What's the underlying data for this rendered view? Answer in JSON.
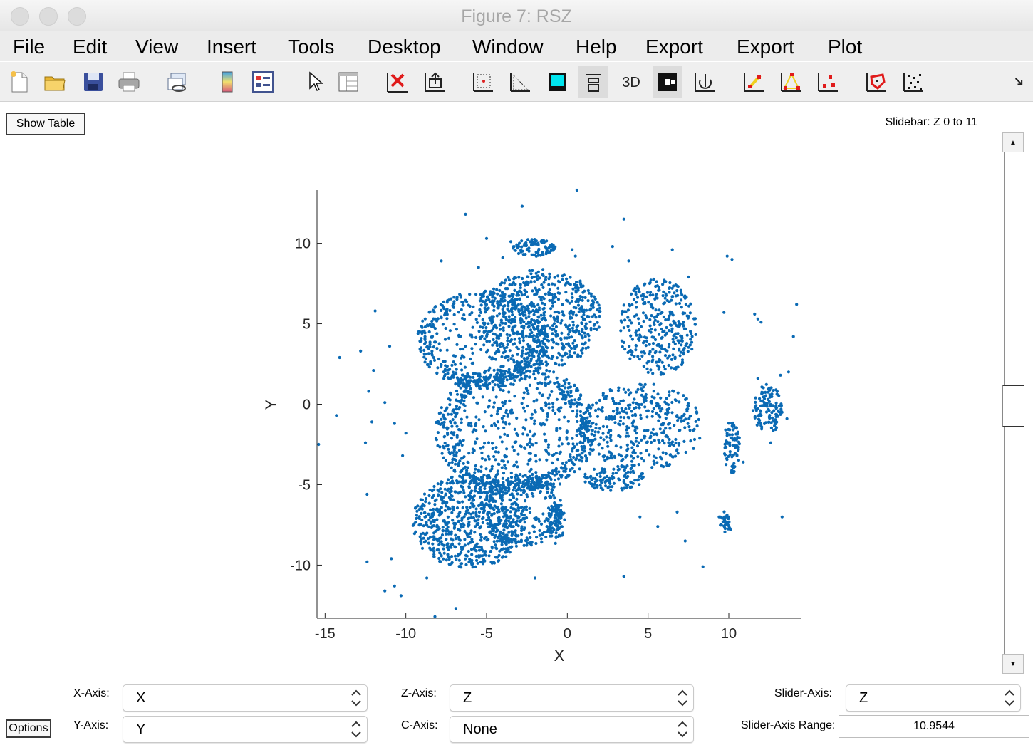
{
  "window": {
    "title": "Figure 7: RSZ"
  },
  "menubar": {
    "items": [
      "File",
      "Edit",
      "View",
      "Insert",
      "Tools",
      "Desktop",
      "Window",
      "Help",
      "Export",
      "Export",
      "Plot"
    ]
  },
  "toolbar": {
    "icons": [
      "new-figure-icon",
      "open-file-icon",
      "save-icon",
      "print-icon",
      "link-plot-icon",
      "colorbar-icon",
      "legend-icon",
      "pointer-icon",
      "property-inspector-icon",
      "delete-icon",
      "export-axes-icon",
      "zoom-box-icon",
      "slice-icon",
      "cyan-square-icon",
      "stack-icon",
      "3d-icon",
      "black-white-toggle-icon",
      "rotate-icon",
      "scatter-yellow-icon",
      "triangle-icon",
      "red-points-icon",
      "polygon-select-icon",
      "grid-points-icon"
    ]
  },
  "controls": {
    "show_table": "Show Table",
    "slidebar_label": "Slidebar: Z 0 to 11",
    "options": "Options",
    "x_axis_label": "X-Axis:",
    "x_axis_value": "X",
    "y_axis_label": "Y-Axis:",
    "y_axis_value": "Y",
    "z_axis_label": "Z-Axis:",
    "z_axis_value": "Z",
    "c_axis_label": "C-Axis:",
    "c_axis_value": "None",
    "slider_axis_label": "Slider-Axis:",
    "slider_axis_value": "Z",
    "slider_range_label": "Slider-Axis Range:",
    "slider_range_value": "10.9544"
  },
  "colors": {
    "marker": "#0a6ab4"
  },
  "chart_data": {
    "type": "scatter",
    "xlabel": "X",
    "ylabel": "Y",
    "xlim": [
      -15.5,
      14.5
    ],
    "ylim": [
      -13.3,
      13.3
    ],
    "xticks": [
      -15,
      -10,
      -5,
      0,
      5,
      10
    ],
    "yticks": [
      -10,
      -5,
      0,
      5,
      10
    ],
    "x_tick_labels": [
      "-15",
      "-10",
      "-5",
      "0",
      "5",
      "10"
    ],
    "y_tick_labels": [
      "-10",
      "-5",
      "0",
      "5",
      "10"
    ],
    "grid": false,
    "series": [
      {
        "points": [
          [
            0.6,
            13.3
          ],
          [
            -6.3,
            11.8
          ],
          [
            -2.8,
            12.3
          ],
          [
            3.5,
            11.5
          ],
          [
            -5.0,
            10.3
          ],
          [
            2.8,
            9.8
          ],
          [
            6.5,
            9.6
          ],
          [
            9.9,
            9.2
          ],
          [
            10.2,
            9.0
          ],
          [
            -7.8,
            8.9
          ],
          [
            -3.5,
            10.1
          ],
          [
            -2.0,
            10.0
          ],
          [
            -1.0,
            9.8
          ],
          [
            0.3,
            9.6
          ],
          [
            0.5,
            9.2
          ],
          [
            -4.0,
            9.1
          ],
          [
            -5.5,
            8.5
          ],
          [
            3.8,
            8.9
          ],
          [
            5.1,
            7.5
          ],
          [
            6.0,
            7.7
          ],
          [
            7.5,
            7.9
          ],
          [
            -11.9,
            5.8
          ],
          [
            -11.0,
            3.6
          ],
          [
            -14.1,
            2.9
          ],
          [
            -12.8,
            3.3
          ],
          [
            -12.0,
            2.1
          ],
          [
            -12.3,
            0.8
          ],
          [
            -11.3,
            0.1
          ],
          [
            -14.3,
            -0.7
          ],
          [
            -15.4,
            -2.5
          ],
          [
            -12.5,
            -2.4
          ],
          [
            -12.1,
            -1.1
          ],
          [
            -10.0,
            -1.8
          ],
          [
            -10.7,
            -1.2
          ],
          [
            -10.2,
            -3.2
          ],
          [
            -12.4,
            -5.6
          ],
          [
            -12.4,
            -9.8
          ],
          [
            -10.9,
            -9.6
          ],
          [
            -11.3,
            -11.6
          ],
          [
            -10.7,
            -11.3
          ],
          [
            -10.3,
            -11.9
          ],
          [
            -8.2,
            -13.2
          ],
          [
            -6.9,
            -12.7
          ],
          [
            -8.7,
            -10.8
          ],
          [
            -2.0,
            -10.8
          ],
          [
            3.5,
            -10.7
          ],
          [
            8.4,
            -10.1
          ],
          [
            7.3,
            -8.5
          ],
          [
            6.8,
            -6.7
          ],
          [
            5.6,
            -7.6
          ],
          [
            4.5,
            -7.0
          ],
          [
            9.4,
            -7.0
          ],
          [
            9.8,
            -7.5
          ],
          [
            10.1,
            -7.8
          ],
          [
            13.3,
            -7.0
          ],
          [
            12.6,
            -2.4
          ],
          [
            9.7,
            5.7
          ],
          [
            11.8,
            5.3
          ],
          [
            11.6,
            5.6
          ],
          [
            12.0,
            5.1
          ],
          [
            14.2,
            6.2
          ],
          [
            14.0,
            4.2
          ],
          [
            13.7,
            2.0
          ],
          [
            13.2,
            1.8
          ],
          [
            11.8,
            1.6
          ],
          [
            12.5,
            1.0
          ],
          [
            13.0,
            0.6
          ],
          [
            12.0,
            0.2
          ],
          [
            12.6,
            -0.1
          ],
          [
            13.3,
            -0.5
          ],
          [
            13.6,
            -0.9
          ],
          [
            11.5,
            -0.4
          ],
          [
            11.9,
            -1.0
          ],
          [
            9.8,
            -1.6
          ],
          [
            10.2,
            -2.1
          ],
          [
            10.6,
            -2.8
          ],
          [
            10.9,
            -3.6
          ],
          [
            10.3,
            -4.2
          ]
        ],
        "clusters": [
          {
            "cx": -3.2,
            "cy": -1.6,
            "rx": 4.9,
            "ry": 4.0,
            "n": 900,
            "ring": true
          },
          {
            "cx": -5.2,
            "cy": 4.0,
            "rx": 4.0,
            "ry": 3.0,
            "n": 520,
            "ring": true
          },
          {
            "cx": -1.6,
            "cy": 5.3,
            "rx": 3.7,
            "ry": 3.1,
            "n": 640,
            "ring": false
          },
          {
            "cx": 5.6,
            "cy": 4.8,
            "rx": 2.4,
            "ry": 3.0,
            "n": 330,
            "ring": false
          },
          {
            "cx": 4.6,
            "cy": -1.4,
            "rx": 3.8,
            "ry": 2.7,
            "n": 380,
            "ring": false
          },
          {
            "cx": -6.1,
            "cy": -7.3,
            "rx": 3.5,
            "ry": 2.9,
            "n": 700,
            "ring": false
          },
          {
            "cx": -2.8,
            "cy": -6.6,
            "rx": 2.5,
            "ry": 2.2,
            "n": 260,
            "ring": true
          },
          {
            "cx": 2.9,
            "cy": -4.6,
            "rx": 1.9,
            "ry": 0.8,
            "n": 110,
            "ring": false
          },
          {
            "cx": 12.4,
            "cy": -0.3,
            "rx": 0.9,
            "ry": 1.6,
            "n": 110,
            "ring": false
          },
          {
            "cx": 10.2,
            "cy": -2.7,
            "rx": 0.5,
            "ry": 1.7,
            "n": 75,
            "ring": false
          },
          {
            "cx": -2.1,
            "cy": 9.7,
            "rx": 1.4,
            "ry": 0.55,
            "n": 90,
            "ring": false
          },
          {
            "cx": -0.7,
            "cy": -7.5,
            "rx": 0.6,
            "ry": 1.3,
            "n": 60,
            "ring": false
          },
          {
            "cx": 9.8,
            "cy": -7.3,
            "rx": 0.4,
            "ry": 0.7,
            "n": 30,
            "ring": false
          }
        ]
      }
    ]
  }
}
